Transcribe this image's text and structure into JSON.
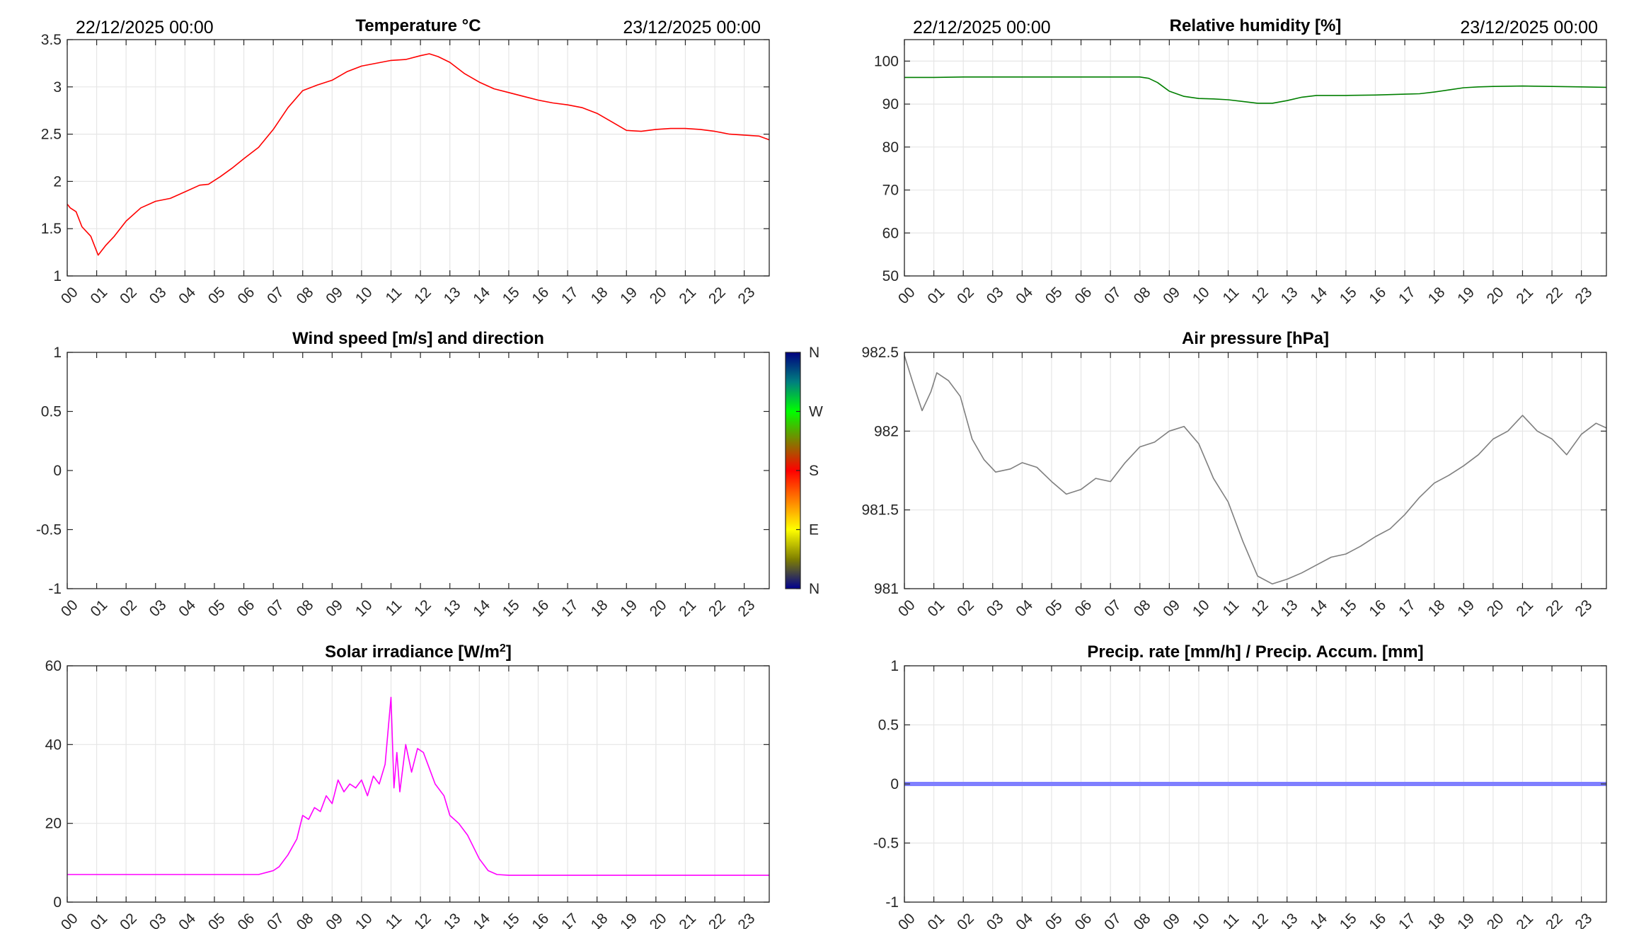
{
  "chart_data": [
    {
      "id": "temperature",
      "type": "line",
      "title": "Temperature °C",
      "date_start": "22/12/2025 00:00",
      "date_end": "23/12/2025 00:00",
      "xticks": [
        "00",
        "01",
        "02",
        "03",
        "04",
        "05",
        "06",
        "07",
        "08",
        "09",
        "10",
        "11",
        "12",
        "13",
        "14",
        "15",
        "16",
        "17",
        "18",
        "19",
        "20",
        "21",
        "22",
        "23"
      ],
      "xlim": [
        0,
        23.85
      ],
      "ylim": [
        1,
        3.5
      ],
      "yticks": [
        "1",
        "1.5",
        "2",
        "2.5",
        "3",
        "3.5"
      ],
      "grid": true,
      "color": "#ff0000",
      "series": [
        {
          "x": [
            0,
            0.1,
            0.3,
            0.5,
            0.8,
            1.05,
            1.3,
            1.6,
            2,
            2.5,
            3,
            3.5,
            4,
            4.5,
            4.8,
            5.2,
            5.6,
            6,
            6.5,
            7,
            7.5,
            8,
            8.5,
            9,
            9.5,
            10,
            10.5,
            11,
            11.5,
            12,
            12.3,
            12.6,
            13,
            13.5,
            14,
            14.5,
            15,
            15.5,
            16,
            16.5,
            17,
            17.5,
            18,
            18.5,
            19,
            19.5,
            20,
            20.5,
            21,
            21.5,
            22,
            22.5,
            23,
            23.5,
            23.85
          ],
          "values": [
            1.76,
            1.72,
            1.68,
            1.52,
            1.42,
            1.22,
            1.32,
            1.42,
            1.58,
            1.72,
            1.79,
            1.82,
            1.89,
            1.96,
            1.97,
            2.05,
            2.14,
            2.24,
            2.36,
            2.55,
            2.78,
            2.96,
            3.02,
            3.07,
            3.16,
            3.22,
            3.25,
            3.28,
            3.29,
            3.33,
            3.35,
            3.32,
            3.26,
            3.14,
            3.05,
            2.98,
            2.94,
            2.9,
            2.86,
            2.83,
            2.81,
            2.78,
            2.72,
            2.63,
            2.54,
            2.53,
            2.55,
            2.56,
            2.56,
            2.55,
            2.53,
            2.5,
            2.49,
            2.48,
            2.44
          ]
        }
      ]
    },
    {
      "id": "humidity",
      "type": "line",
      "title": "Relative humidity [%]",
      "date_start": "22/12/2025 00:00",
      "date_end": "23/12/2025 00:00",
      "xticks": [
        "00",
        "01",
        "02",
        "03",
        "04",
        "05",
        "06",
        "07",
        "08",
        "09",
        "10",
        "11",
        "12",
        "13",
        "14",
        "15",
        "16",
        "17",
        "18",
        "19",
        "20",
        "21",
        "22",
        "23"
      ],
      "xlim": [
        0,
        23.85
      ],
      "ylim": [
        50,
        105
      ],
      "yticks": [
        "50",
        "60",
        "70",
        "80",
        "90",
        "100"
      ],
      "grid": true,
      "color": "#007f00",
      "series": [
        {
          "x": [
            0,
            1,
            2,
            3,
            4,
            5,
            6,
            7,
            8,
            8.3,
            8.6,
            9,
            9.5,
            10,
            10.5,
            11,
            11.5,
            12,
            12.5,
            13,
            13.5,
            14,
            15,
            16,
            17,
            17.5,
            18,
            18.5,
            19,
            19.5,
            20,
            21,
            22,
            23,
            23.85
          ],
          "values": [
            96.2,
            96.2,
            96.3,
            96.3,
            96.3,
            96.3,
            96.3,
            96.3,
            96.3,
            96.0,
            95.0,
            93.0,
            91.8,
            91.3,
            91.2,
            91.0,
            90.6,
            90.2,
            90.2,
            90.8,
            91.6,
            92.0,
            92.0,
            92.1,
            92.3,
            92.4,
            92.8,
            93.3,
            93.8,
            94.0,
            94.1,
            94.2,
            94.1,
            94.0,
            93.9
          ]
        }
      ]
    },
    {
      "id": "wind",
      "type": "scatter",
      "title": "Wind speed [m/s] and direction",
      "xticks": [
        "00",
        "01",
        "02",
        "03",
        "04",
        "05",
        "06",
        "07",
        "08",
        "09",
        "10",
        "11",
        "12",
        "13",
        "14",
        "15",
        "16",
        "17",
        "18",
        "19",
        "20",
        "21",
        "22",
        "23"
      ],
      "xlim": [
        0,
        23.85
      ],
      "ylim": [
        -1,
        1
      ],
      "yticks": [
        "-1",
        "-0.5",
        "0",
        "0.5",
        "1"
      ],
      "grid": false,
      "series": [],
      "colorbar": {
        "labels": [
          "N",
          "E",
          "S",
          "W",
          "N"
        ],
        "colors": [
          "#00008f",
          "#7f7f00",
          "#ffff00",
          "#ff7f00",
          "#ff0000",
          "#7f7f00",
          "#00ff00",
          "#007f7f",
          "#00007f"
        ]
      }
    },
    {
      "id": "pressure",
      "type": "line",
      "title": "Air pressure [hPa]",
      "xticks": [
        "00",
        "01",
        "02",
        "03",
        "04",
        "05",
        "06",
        "07",
        "08",
        "09",
        "10",
        "11",
        "12",
        "13",
        "14",
        "15",
        "16",
        "17",
        "18",
        "19",
        "20",
        "21",
        "22",
        "23"
      ],
      "xlim": [
        0,
        23.85
      ],
      "ylim": [
        981,
        982.5
      ],
      "yticks": [
        "981",
        "981.5",
        "982",
        "982.5"
      ],
      "grid": true,
      "color": "#7f7f7f",
      "series": [
        {
          "x": [
            0,
            0.3,
            0.6,
            0.9,
            1.1,
            1.5,
            1.9,
            2.3,
            2.7,
            3.1,
            3.6,
            4,
            4.5,
            5,
            5.5,
            6,
            6.5,
            7,
            7.5,
            8,
            8.5,
            9,
            9.5,
            10,
            10.5,
            11,
            11.5,
            12,
            12.5,
            13,
            13.5,
            14,
            14.5,
            15,
            15.5,
            16,
            16.5,
            17,
            17.5,
            18,
            18.5,
            19,
            19.5,
            20,
            20.5,
            21,
            21.5,
            22,
            22.5,
            23,
            23.5,
            23.85
          ],
          "values": [
            982.48,
            982.3,
            982.13,
            982.25,
            982.37,
            982.32,
            982.22,
            981.95,
            981.82,
            981.74,
            981.76,
            981.8,
            981.77,
            981.68,
            981.6,
            981.63,
            981.7,
            981.68,
            981.8,
            981.9,
            981.93,
            982.0,
            982.03,
            981.92,
            981.7,
            981.55,
            981.3,
            981.08,
            981.03,
            981.06,
            981.1,
            981.15,
            981.2,
            981.22,
            981.27,
            981.33,
            981.38,
            981.47,
            981.58,
            981.67,
            981.72,
            981.78,
            981.85,
            981.95,
            982.0,
            982.1,
            982.0,
            981.95,
            981.85,
            981.98,
            982.05,
            982.02
          ]
        }
      ]
    },
    {
      "id": "solar",
      "type": "line",
      "title": "Solar irradiance [W/m",
      "title_sup": "2",
      "title_end": "]",
      "xticks": [
        "00",
        "01",
        "02",
        "03",
        "04",
        "05",
        "06",
        "07",
        "08",
        "09",
        "10",
        "11",
        "12",
        "13",
        "14",
        "15",
        "16",
        "17",
        "18",
        "19",
        "20",
        "21",
        "22",
        "23"
      ],
      "xlim": [
        0,
        23.85
      ],
      "ylim": [
        0,
        60
      ],
      "yticks": [
        "0",
        "20",
        "40",
        "60"
      ],
      "grid": true,
      "color": "#ff00ff",
      "series": [
        {
          "x": [
            0,
            1,
            2,
            3,
            4,
            5,
            6,
            6.5,
            7,
            7.2,
            7.5,
            7.8,
            8,
            8.2,
            8.4,
            8.6,
            8.8,
            9,
            9.2,
            9.4,
            9.6,
            9.8,
            10,
            10.2,
            10.4,
            10.6,
            10.8,
            11,
            11.1,
            11.2,
            11.3,
            11.5,
            11.7,
            11.9,
            12.1,
            12.3,
            12.5,
            12.8,
            13,
            13.3,
            13.6,
            14,
            14.3,
            14.6,
            15,
            16,
            17,
            18,
            19,
            20,
            21,
            22,
            23,
            23.85
          ],
          "values": [
            7,
            7,
            7,
            7,
            7,
            7,
            7,
            7,
            8,
            9,
            12,
            16,
            22,
            21,
            24,
            23,
            27,
            25,
            31,
            28,
            30,
            29,
            31,
            27,
            32,
            30,
            35,
            52,
            29,
            38,
            28,
            40,
            33,
            39,
            38,
            34,
            30,
            27,
            22,
            20,
            17,
            11,
            8,
            7,
            6.8,
            6.8,
            6.8,
            6.8,
            6.8,
            6.8,
            6.8,
            6.8,
            6.8,
            6.8
          ]
        }
      ]
    },
    {
      "id": "precip",
      "type": "line",
      "title": "Precip. rate [mm/h] / Precip. Accum. [mm]",
      "xticks": [
        "00",
        "01",
        "02",
        "03",
        "04",
        "05",
        "06",
        "07",
        "08",
        "09",
        "10",
        "11",
        "12",
        "13",
        "14",
        "15",
        "16",
        "17",
        "18",
        "19",
        "20",
        "21",
        "22",
        "23"
      ],
      "xlim": [
        0,
        23.85
      ],
      "ylim": [
        -1,
        1
      ],
      "yticks": [
        "-1",
        "-0.5",
        "0",
        "0.5",
        "1"
      ],
      "grid": true,
      "color": "#7f7fff",
      "series": [
        {
          "x": [
            0,
            23.85
          ],
          "values": [
            0,
            0
          ]
        }
      ]
    }
  ]
}
